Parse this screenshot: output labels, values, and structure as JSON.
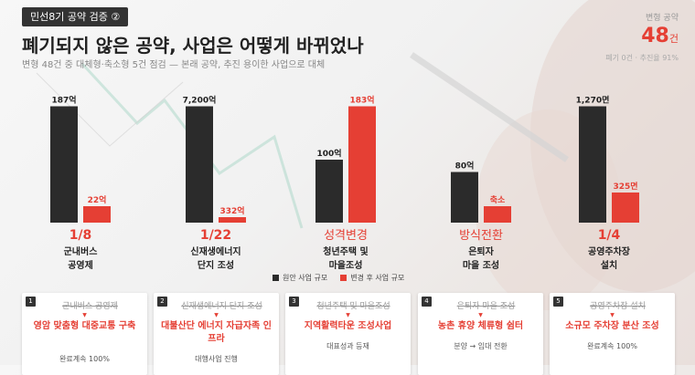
{
  "header": {
    "badge": "민선8기 공약 검증 ②",
    "title": "폐기되지 않은 공약, 사업은 어떻게 바뀌었나",
    "subtitle": "변형 48건 중 대체형·축소형 5건 점검 — 본래 공약, 추진 용이한 사업으로 대체"
  },
  "stat": {
    "label": "변형 공약",
    "value": "48",
    "unit": "건",
    "note": "폐기 0건 · 추진율 91%"
  },
  "colors": {
    "original": "#2b2b2b",
    "changed": "#e53f34",
    "accent": "#e53f34",
    "ratio_text": "#e53f34"
  },
  "legend": {
    "original": "원안 사업 규모",
    "changed": "변경 후 사업 규모"
  },
  "chart_data": {
    "type": "bar",
    "series": [
      {
        "name": "원안 사업 규모",
        "values": [
          187,
          7200,
          100,
          80,
          1270
        ]
      },
      {
        "name": "변경 후 사업 규모",
        "values": [
          22,
          332,
          183,
          null,
          325
        ]
      }
    ],
    "groups": [
      {
        "orig_label": "187억",
        "new_label": "22억",
        "ratio": "1/8",
        "category": "군내버스\n공영제",
        "orig_level": 0.85,
        "new_level": 0.12
      },
      {
        "orig_label": "7,200억",
        "new_label": "332억",
        "ratio": "1/22",
        "category": "신재생에너지\n단지 조성",
        "orig_level": 0.85,
        "new_level": 0.04
      },
      {
        "orig_label": "100억",
        "new_label": "183억",
        "ratio": "성격변경",
        "category": "청년주택 및\n마을조성",
        "orig_level": 0.46,
        "new_level": 0.85
      },
      {
        "orig_label": "80억",
        "new_label": "축소",
        "ratio": "방식전환",
        "category": "은퇴자\n마을 조성",
        "orig_level": 0.37,
        "new_level": 0.12
      },
      {
        "orig_label": "1,270면",
        "new_label": "325면",
        "ratio": "1/4",
        "category": "공영주차장\n설치",
        "orig_level": 0.85,
        "new_level": 0.22
      }
    ]
  },
  "cards": [
    {
      "num": "1",
      "original": "군내버스 공영제",
      "arrow": "▼",
      "replacement": "영암 맞춤형 대중교통 구축",
      "status": "완료계속 100%"
    },
    {
      "num": "2",
      "original": "신재생에너지 단지 조성",
      "arrow": "▼",
      "replacement": "대불산단 에너지 자급자족 인프라",
      "status": "대행사업 진행"
    },
    {
      "num": "3",
      "original": "청년주택 및 마을조성",
      "arrow": "▼",
      "replacement": "지역활력타운 조성사업",
      "status": "대표성과 등재"
    },
    {
      "num": "4",
      "original": "은퇴자 마을 조성",
      "arrow": "▼",
      "replacement": "농촌 휴양 체류형 쉼터",
      "status": "분양 → 임대 전환"
    },
    {
      "num": "5",
      "original": "공영주차장 설치",
      "arrow": "▼",
      "replacement": "소규모 주차장 분산 조성",
      "status": "완료계속 100%"
    }
  ]
}
